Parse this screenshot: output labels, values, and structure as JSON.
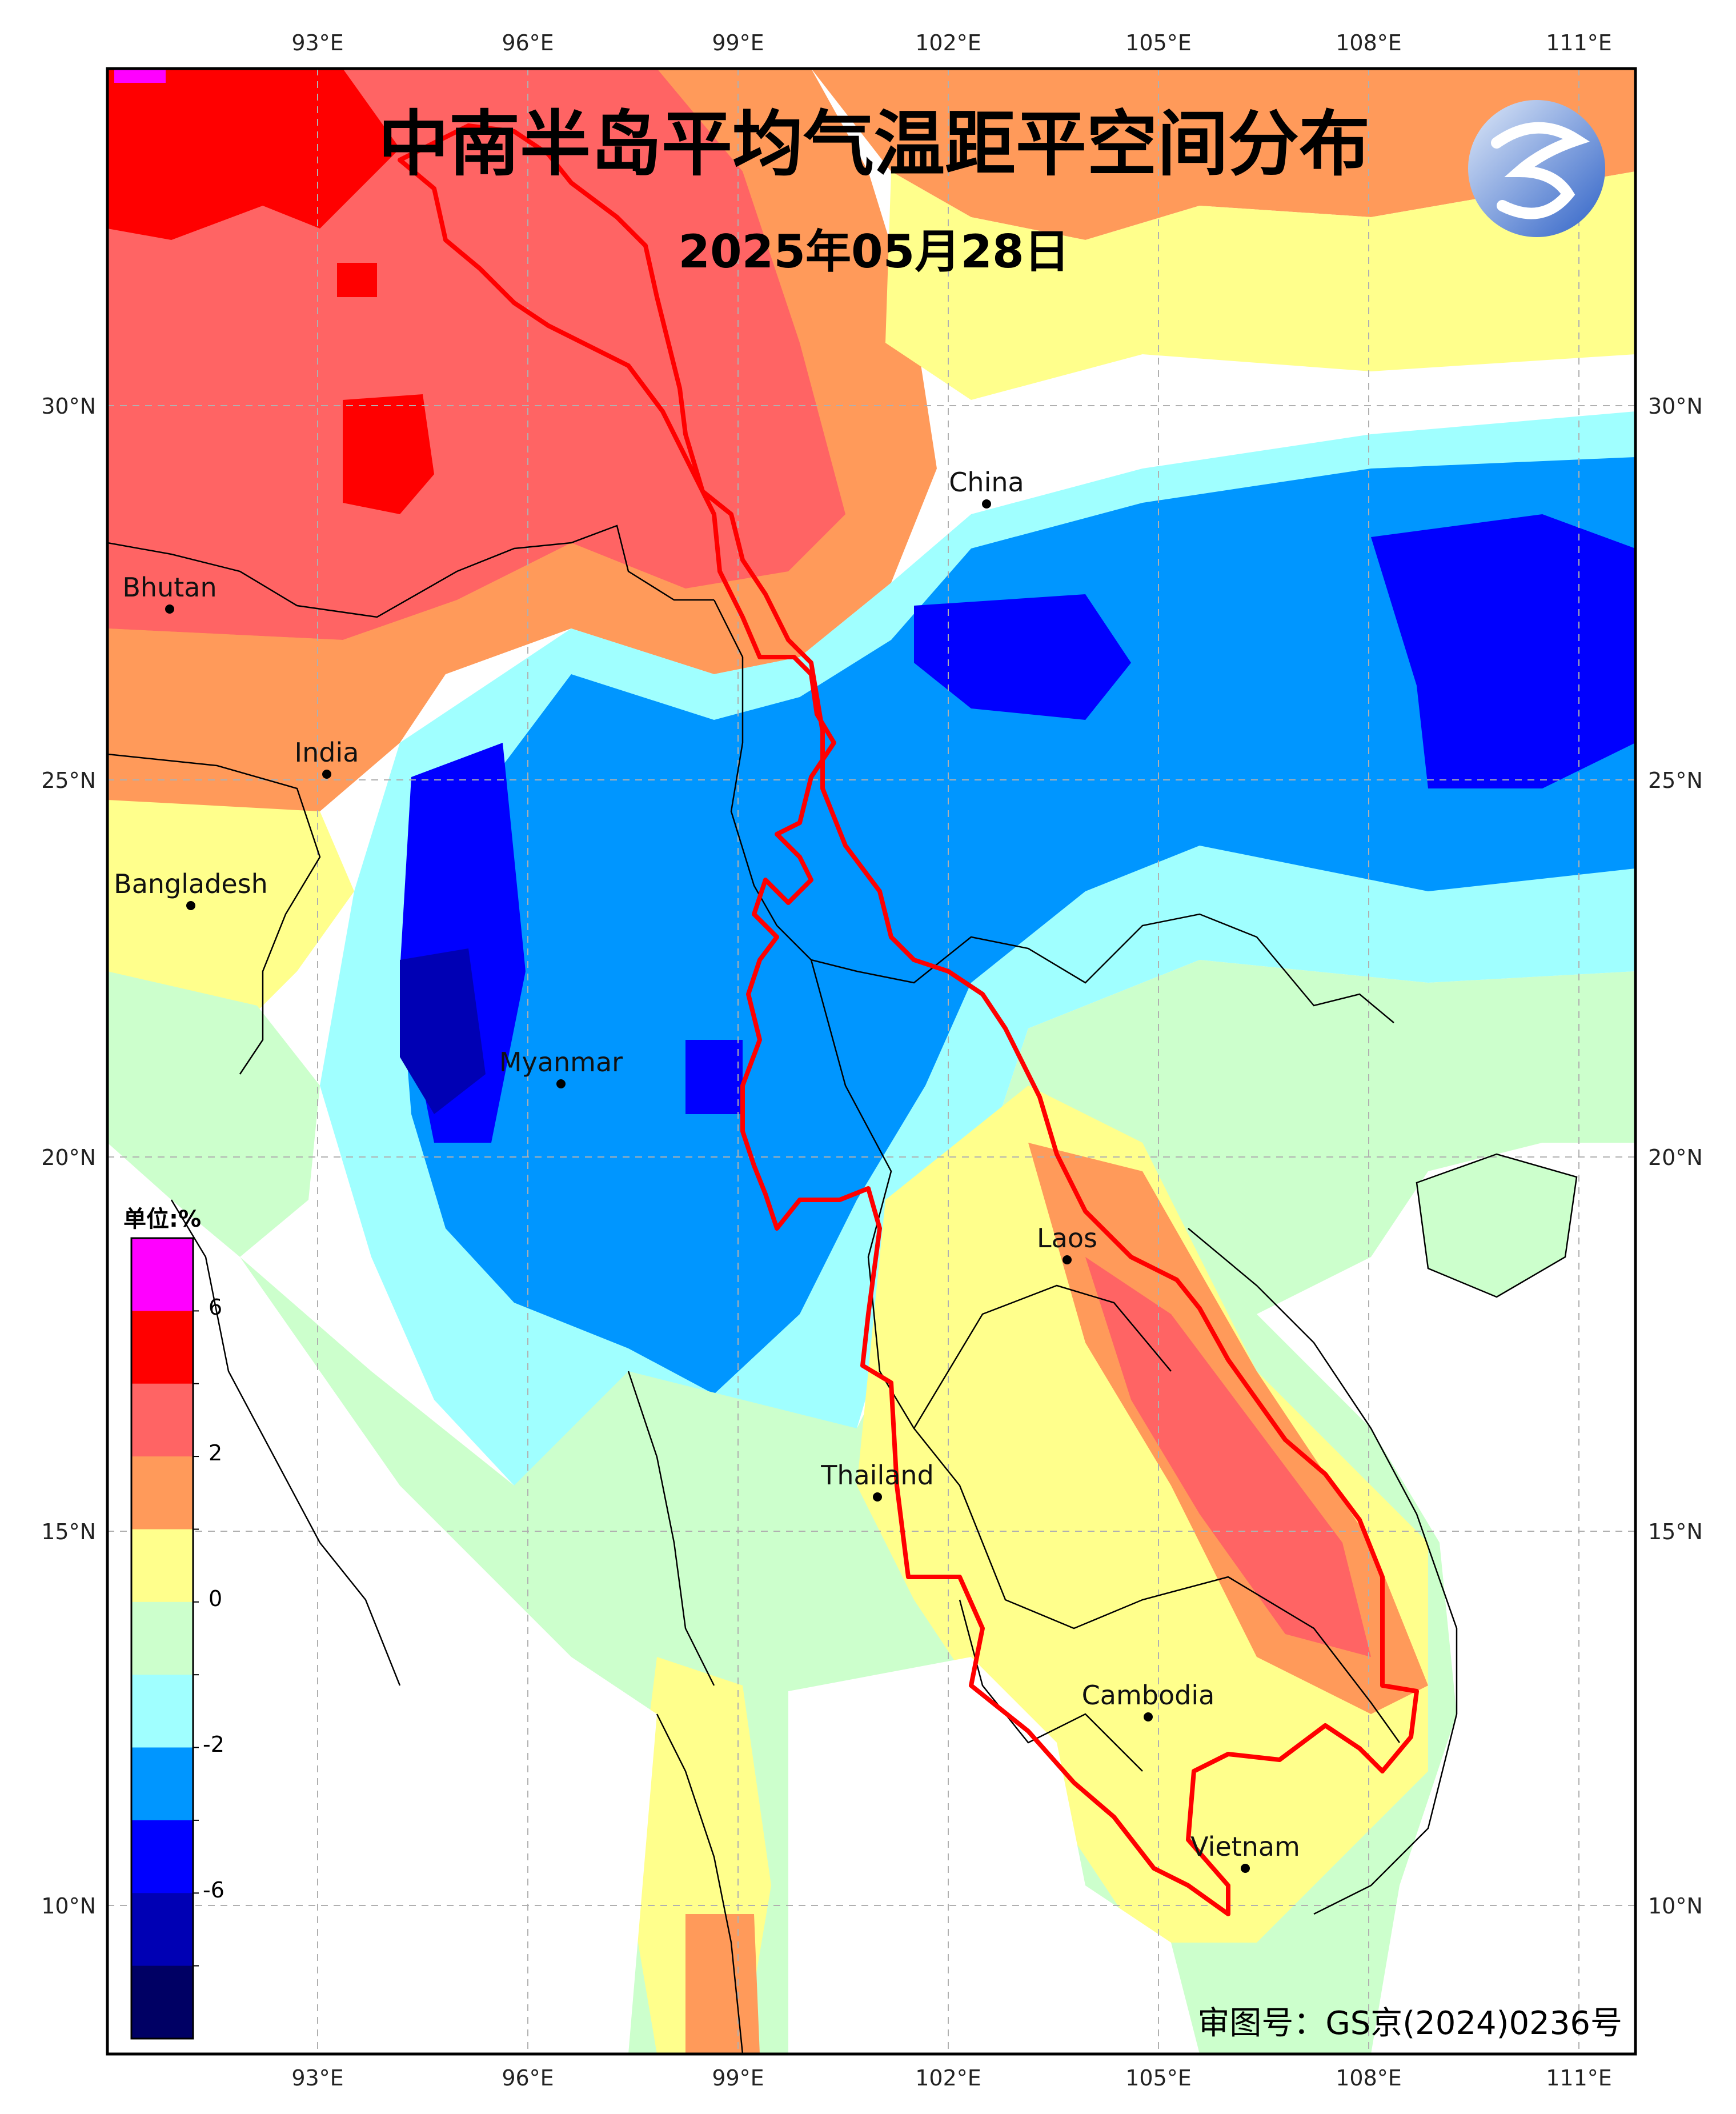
{
  "title": "中南半岛平均气温距平空间分布",
  "date": "2025年05月28日",
  "approval": "审图号：GS京(2024)0236号",
  "axes": {
    "lon_labels": [
      "93°E",
      "96°E",
      "99°E",
      "102°E",
      "105°E",
      "108°E",
      "111°E"
    ],
    "lat_labels": [
      "30°N",
      "25°N",
      "20°N",
      "15°N",
      "10°N"
    ]
  },
  "cities": [
    {
      "name": "China"
    },
    {
      "name": "Bhutan"
    },
    {
      "name": "India"
    },
    {
      "name": "Bangladesh"
    },
    {
      "name": "Myanmar"
    },
    {
      "name": "Laos"
    },
    {
      "name": "Thailand"
    },
    {
      "name": "Cambodia"
    },
    {
      "name": "Vietnam"
    }
  ],
  "legend": {
    "unit": "单位:%",
    "labels": [
      "6",
      "2",
      "0",
      "-2",
      "-6"
    ],
    "colors": [
      "#ff00ff",
      "#ff0000",
      "#ff6464",
      "#ff9a5a",
      "#ffff8c",
      "#ccffcc",
      "#a0ffff",
      "#0096ff",
      "#0000ff",
      "#0000b4",
      "#000064"
    ]
  }
}
